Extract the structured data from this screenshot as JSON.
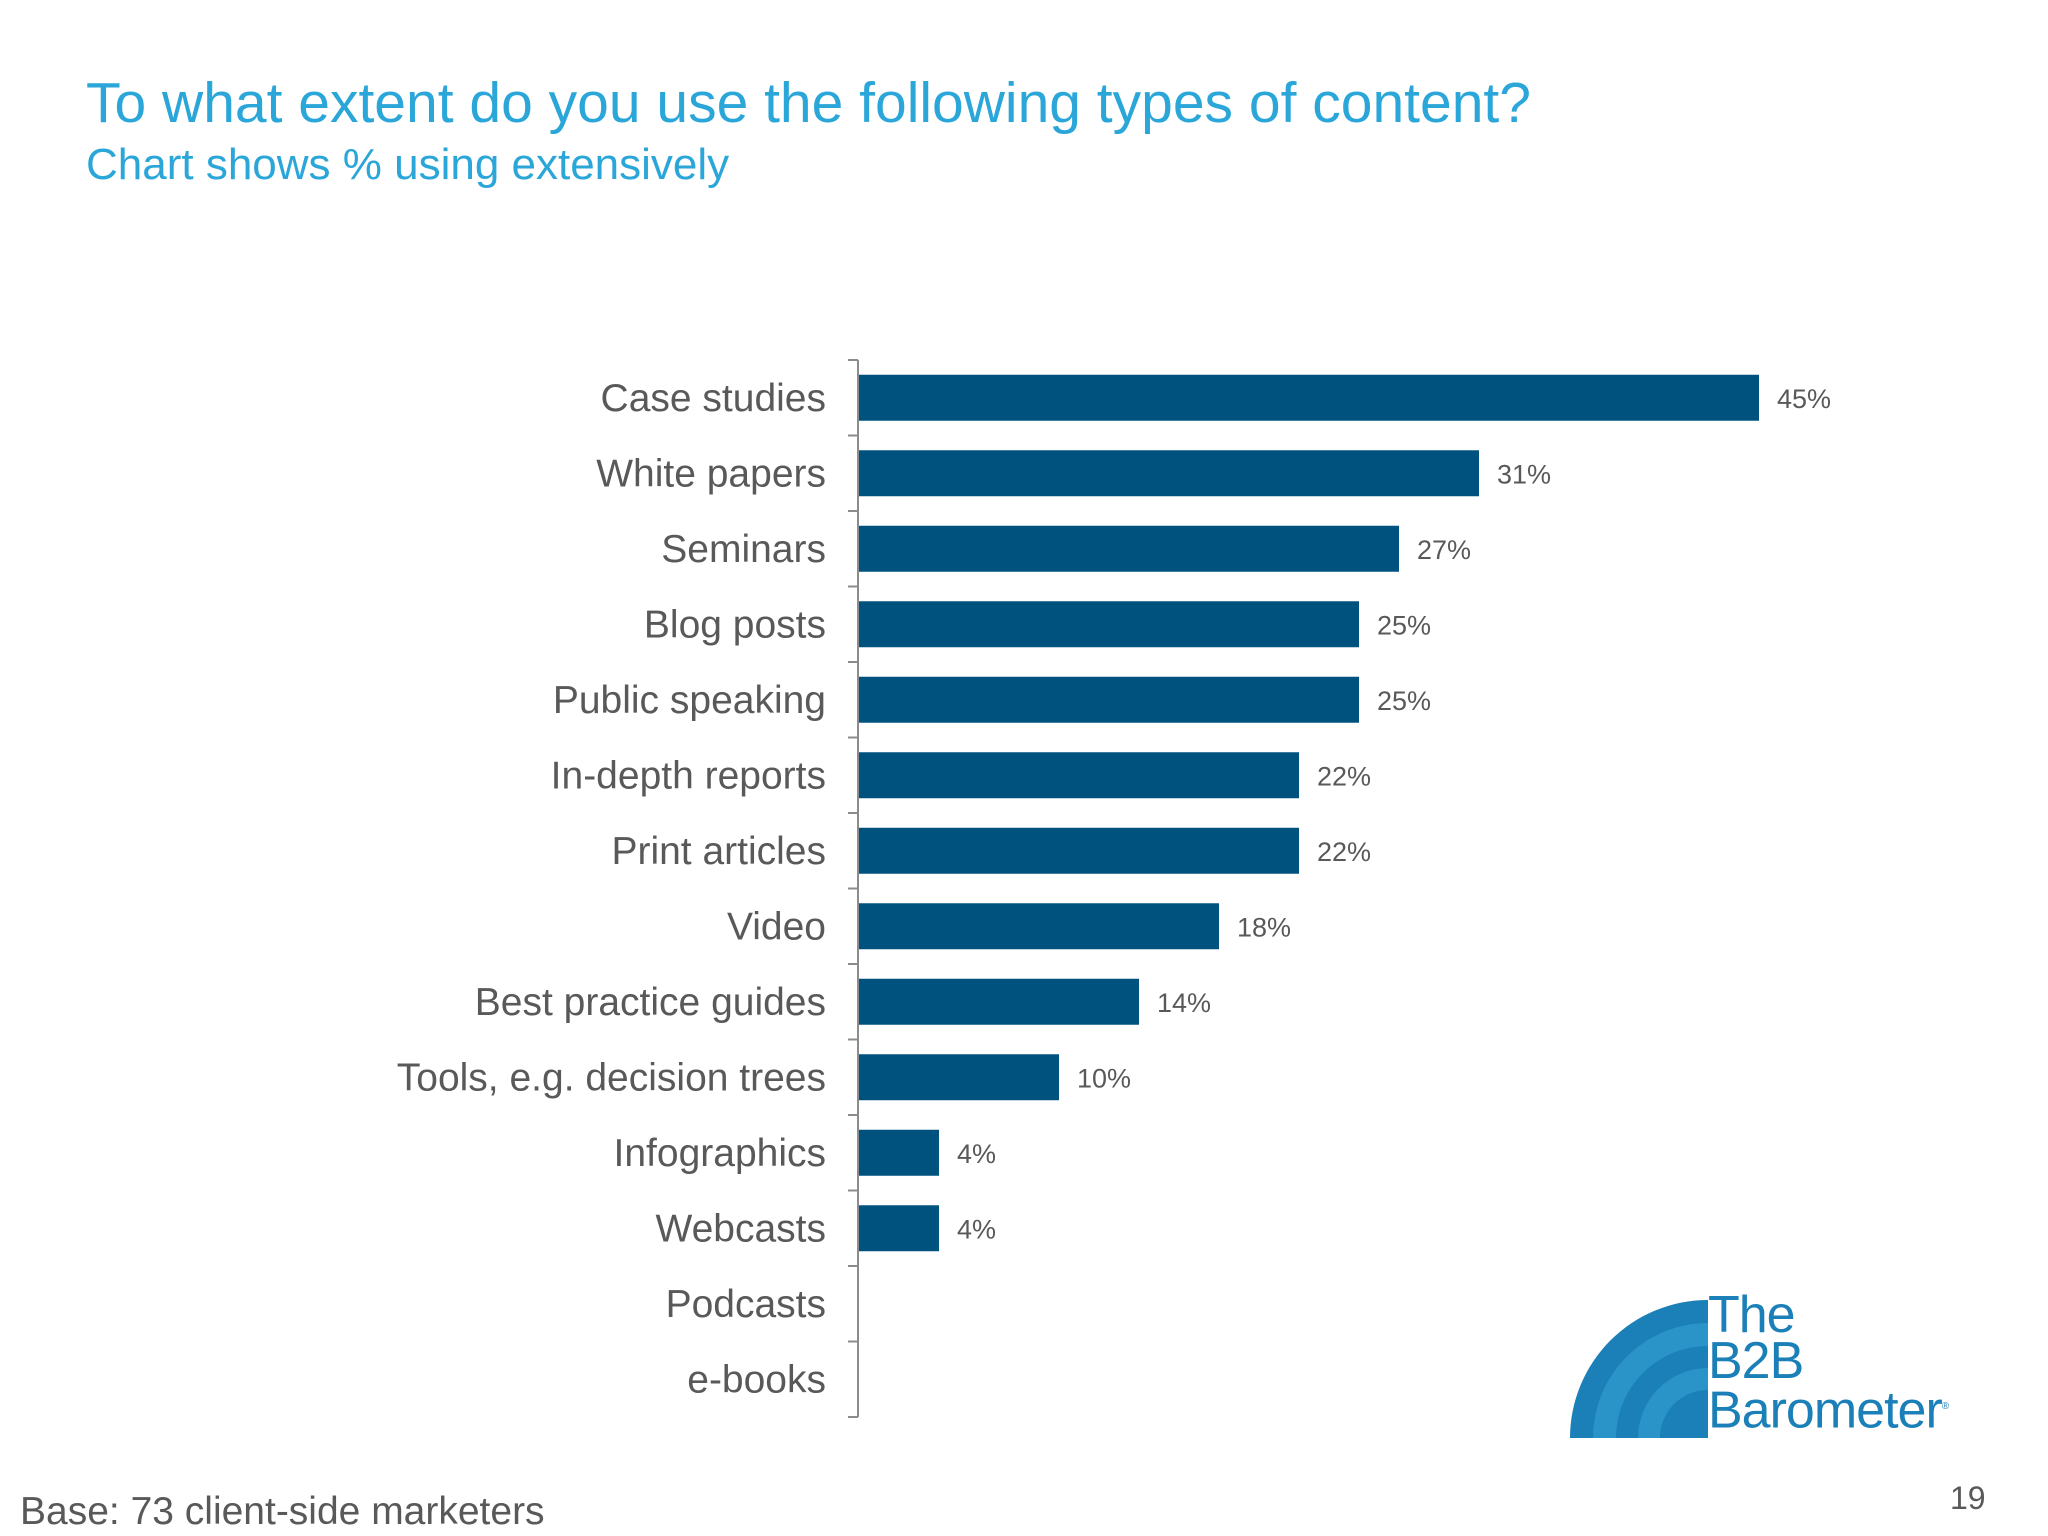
{
  "chart_data": {
    "type": "bar",
    "orientation": "horizontal",
    "title": "To what extent do you use the following types of content?",
    "subtitle": "Chart shows % using extensively",
    "categories": [
      "Case studies",
      "White papers",
      "Seminars",
      "Blog posts",
      "Public speaking",
      "In-depth reports",
      "Print articles",
      "Video",
      "Best practice guides",
      "Tools, e.g. decision trees",
      "Infographics",
      "Webcasts",
      "Podcasts",
      "e-books"
    ],
    "values": [
      45,
      31,
      27,
      25,
      25,
      22,
      22,
      18,
      14,
      10,
      4,
      4,
      0,
      0
    ],
    "value_labels": [
      "45%",
      "31%",
      "27%",
      "25%",
      "25%",
      "22%",
      "22%",
      "18%",
      "14%",
      "10%",
      "4%",
      "4%",
      "",
      ""
    ],
    "xlim": [
      0,
      50
    ],
    "grid": false,
    "bar_color": "#00527e"
  },
  "footer": {
    "base_note": "Base: 73 client-side marketers",
    "page_number": "19"
  },
  "logo": {
    "line1": "The",
    "line2": "B2B",
    "line3": "Barometer",
    "mark": "®",
    "color": "#1b7fb8"
  }
}
